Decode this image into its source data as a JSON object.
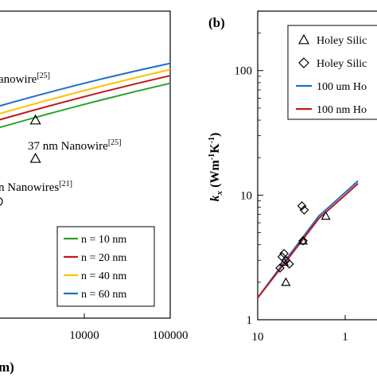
{
  "chart_data": [
    {
      "panel": "a",
      "type": "line",
      "xscale": "log",
      "xlim": [
        1000,
        100000
      ],
      "xticks": [
        "10000",
        "100000"
      ],
      "xlabel_fragment": "m)",
      "series": [
        {
          "name": "n = 10 nm",
          "color": "#2ca02c",
          "x": [
            1000,
            10000,
            100000
          ],
          "y": [
            0.62,
            0.69,
            0.765
          ]
        },
        {
          "name": "n = 20 nm",
          "color": "#c0171c",
          "x": [
            1000,
            10000,
            100000
          ],
          "y": [
            0.645,
            0.715,
            0.79
          ]
        },
        {
          "name": "n = 40 nm",
          "color": "#ffc000",
          "x": [
            1000,
            10000,
            100000
          ],
          "y": [
            0.665,
            0.735,
            0.81
          ]
        },
        {
          "name": "n = 60 nm",
          "color": "#1f6fc5",
          "x": [
            1000,
            10000,
            100000
          ],
          "y": [
            0.69,
            0.76,
            0.83
          ]
        }
      ],
      "points": [
        {
          "marker": "triangle",
          "x": 2700,
          "y": 0.645
        },
        {
          "marker": "triangle",
          "x": 2700,
          "y": 0.52
        },
        {
          "marker": "circle",
          "x": 1000,
          "y": 0.38
        }
      ],
      "annotations": [
        {
          "prefix": "anowire",
          "sup": "[25]"
        },
        {
          "prefix": "37 nm Nanowire",
          "sup": "[25]"
        },
        {
          "prefix": "n Nanowires",
          "sup": "[21]"
        }
      ],
      "legend": {
        "placement": "bottom-right",
        "entries": [
          "n = 10 nm",
          "n = 20 nm",
          "n = 40 nm",
          "n = 60 nm"
        ]
      }
    },
    {
      "panel": "b",
      "type": "line",
      "xscale": "log",
      "yscale": "log",
      "xlim": [
        10,
        1000
      ],
      "ylim": [
        1,
        300
      ],
      "xticks": [
        "10",
        "1"
      ],
      "yticks": [
        "1",
        "10",
        "100"
      ],
      "ylabel_main": "k",
      "ylabel_sub": "x",
      "ylabel_units_a": " (Wm",
      "ylabel_units_b": "-1",
      "ylabel_units_c": "K",
      "ylabel_units_d": "-1",
      "ylabel_units_e": ")",
      "series": [
        {
          "name": "100 um Ho",
          "color": "#1f6fc5",
          "x": [
            10,
            20,
            50,
            100,
            140
          ],
          "y": [
            1.5,
            2.9,
            6.8,
            10.5,
            13
          ]
        },
        {
          "name": "100 nm Ho",
          "color": "#c0171c",
          "x": [
            10,
            20,
            50,
            100,
            140
          ],
          "y": [
            1.5,
            2.8,
            6.5,
            10.0,
            12.4
          ]
        }
      ],
      "points": [
        {
          "marker": "triangle",
          "x": 21,
          "y": 2.0
        },
        {
          "marker": "triangle",
          "x": 20,
          "y": 2.9
        },
        {
          "marker": "triangle",
          "x": 33,
          "y": 4.3
        },
        {
          "marker": "triangle",
          "x": 60,
          "y": 6.8
        },
        {
          "marker": "diamond",
          "x": 18,
          "y": 2.6
        },
        {
          "marker": "diamond",
          "x": 19,
          "y": 3.2
        },
        {
          "marker": "diamond",
          "x": 20,
          "y": 3.4
        },
        {
          "marker": "diamond",
          "x": 21,
          "y": 3.0
        },
        {
          "marker": "diamond",
          "x": 23,
          "y": 2.8
        },
        {
          "marker": "diamond",
          "x": 33,
          "y": 4.3
        },
        {
          "marker": "diamond",
          "x": 32,
          "y": 8.2
        },
        {
          "marker": "diamond",
          "x": 34,
          "y": 7.6
        }
      ],
      "legend": {
        "placement": "top-right",
        "entries": [
          "Holey Silic",
          "Holey Silic",
          "100 um Ho",
          "100 nm Ho"
        ]
      }
    }
  ],
  "panel_b_label": "(b)"
}
